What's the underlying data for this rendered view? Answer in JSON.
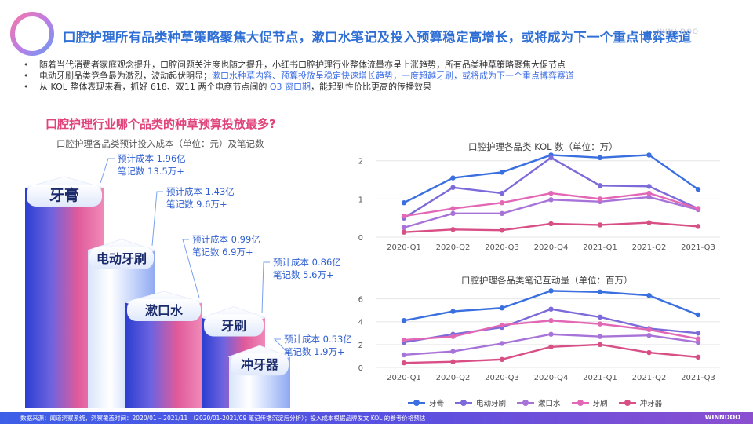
{
  "header": {
    "title": "口腔护理所有品类种草策略聚焦大促节点，漱口水笔记及投入预算稳定高增长，或将成为下一个重点博弈赛道",
    "watermark": "WINNDOO"
  },
  "bullets": [
    {
      "parts": [
        "随着当代消费者家庭观念提升，口腔问题关注度也随之提升，小红书口腔护理行业整体流量亦呈上涨趋势，所有品类种草策略聚焦大促节点"
      ]
    },
    {
      "parts": [
        "电动牙刷品类竞争最为激烈，波动起伏明显；",
        "漱口水种草内容、预算投放呈稳定快速增长趋势，一度超越牙刷，或将成为下一个重点博弈赛道"
      ]
    },
    {
      "parts": [
        "从 KOL 整体表现来看，抓好 618、双11 两个电商节点间的 ",
        "Q3 窗口期",
        "，能起到性价比更高的传播效果"
      ]
    }
  ],
  "left_chart": {
    "title": "口腔护理行业哪个品类的种草预算投放最多?",
    "subtitle": "口腔护理各品类预计投入成本（单位：元）及笔记数"
  },
  "colors": {
    "title_blue": "#2f6fd6",
    "pink": "#e0447a",
    "toothpaste": "#3a6fe0",
    "electric_toothbrush": "#7b6ad9",
    "mouthwash": "#a873d8",
    "toothbrush": "#e268b5",
    "water_flosser": "#d84f86"
  },
  "chart_data": [
    {
      "type": "bar",
      "title": "口腔护理各品类预计投入成本（单位：元）及笔记数",
      "categories": [
        "牙膏",
        "电动牙刷",
        "漱口水",
        "牙刷",
        "冲牙器"
      ],
      "series": [
        {
          "name": "预计成本(亿)",
          "values": [
            1.96,
            1.43,
            0.99,
            0.86,
            0.53
          ]
        },
        {
          "name": "笔记数(万+)",
          "values": [
            13.5,
            9.6,
            6.9,
            5.6,
            1.9
          ]
        }
      ],
      "labels": [
        {
          "cost": "预计成本 1.96亿",
          "notes": "笔记数 13.5万+"
        },
        {
          "cost": "预计成本 1.43亿",
          "notes": "笔记数 9.6万+"
        },
        {
          "cost": "预计成本 0.99亿",
          "notes": "笔记数 6.9万+"
        },
        {
          "cost": "预计成本 0.86亿",
          "notes": "笔记数 5.6万+"
        },
        {
          "cost": "预计成本 0.53亿",
          "notes": "笔记数 1.9万+"
        }
      ]
    },
    {
      "type": "line",
      "title": "口腔护理各品类 KOL 数（单位：万）",
      "x": [
        "2020-Q1",
        "2020-Q2",
        "2020-Q3",
        "2020-Q4",
        "2021-Q1",
        "2021-Q2",
        "2021-Q3"
      ],
      "ylim": [
        0,
        2.2
      ],
      "yticks": [
        "0",
        "1",
        "2"
      ],
      "series": [
        {
          "name": "牙膏",
          "values": [
            0.9,
            1.55,
            1.7,
            2.15,
            2.08,
            2.15,
            1.25
          ]
        },
        {
          "name": "电动牙刷",
          "values": [
            0.5,
            1.3,
            1.15,
            2.08,
            1.35,
            1.33,
            0.75
          ]
        },
        {
          "name": "漱口水",
          "values": [
            0.25,
            0.62,
            0.62,
            0.98,
            0.93,
            1.05,
            0.72
          ]
        },
        {
          "name": "牙刷",
          "values": [
            0.55,
            0.75,
            0.9,
            1.15,
            1.0,
            1.15,
            0.75
          ]
        },
        {
          "name": "冲牙器",
          "values": [
            0.13,
            0.2,
            0.18,
            0.35,
            0.32,
            0.38,
            0.28
          ]
        }
      ]
    },
    {
      "type": "line",
      "title": "口腔护理各品类笔记互动量（单位：百万）",
      "x": [
        "2020-Q1",
        "2020-Q2",
        "2020-Q3",
        "2020-Q4",
        "2021-Q1",
        "2021-Q2",
        "2021-Q3"
      ],
      "ylim": [
        0,
        7
      ],
      "yticks": [
        "0",
        "2",
        "4",
        "6"
      ],
      "series": [
        {
          "name": "牙膏",
          "values": [
            4.1,
            4.9,
            5.2,
            6.7,
            6.6,
            6.3,
            4.6
          ]
        },
        {
          "name": "电动牙刷",
          "values": [
            2.2,
            2.9,
            3.5,
            5.1,
            4.4,
            3.4,
            3.0
          ]
        },
        {
          "name": "漱口水",
          "values": [
            1.1,
            1.4,
            2.1,
            2.9,
            2.7,
            2.8,
            2.2
          ]
        },
        {
          "name": "牙刷",
          "values": [
            2.4,
            2.7,
            3.7,
            4.1,
            3.8,
            3.3,
            2.5
          ]
        },
        {
          "name": "冲牙器",
          "values": [
            0.4,
            0.5,
            0.7,
            1.8,
            2.0,
            1.3,
            0.9
          ]
        }
      ]
    }
  ],
  "legend": [
    "牙膏",
    "电动牙刷",
    "漱口水",
    "牙刷",
    "冲牙器"
  ],
  "footer": {
    "source": "数据来源：闻道洞察系统，洞察覆盖时间：2020/01 – 2021/11 （2020/01-2021/09 笔记传播沉淀后分析）；投入成本根据品牌发文 KOL 的参考价格预估",
    "brand": "WINNDOO"
  }
}
